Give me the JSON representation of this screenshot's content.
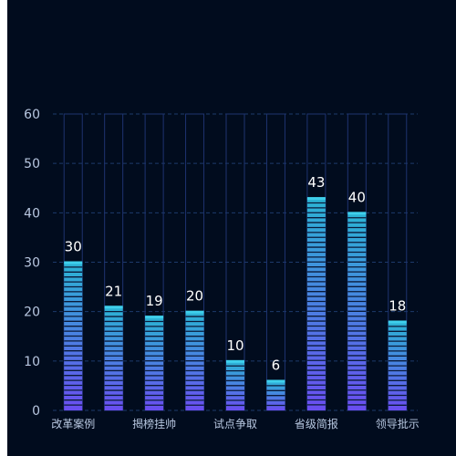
{
  "colors": {
    "background": "#010c1e",
    "grid": "#1d3a6b",
    "frame": "#1e3370",
    "bar_top": "#2bb4d4",
    "bar_bottom": "#6a4df0",
    "top_cap": "#3fd0ec",
    "segment_line": "#0a1a3a"
  },
  "chart_data": {
    "type": "bar",
    "categories": [
      "改革案例",
      "",
      "揭榜挂帅",
      "",
      "试点争取",
      "",
      "省级简报",
      "",
      "领导批示"
    ],
    "values": [
      30,
      21,
      19,
      20,
      10,
      6,
      43,
      40,
      18
    ],
    "ylim": [
      0,
      60
    ],
    "y_ticks": [
      "0",
      "10",
      "20",
      "30",
      "40",
      "50",
      "60"
    ],
    "data_labels": [
      "30",
      "21",
      "19",
      "20",
      "10",
      "6",
      "43",
      "40",
      "18"
    ],
    "grid": true,
    "legend": "none"
  }
}
